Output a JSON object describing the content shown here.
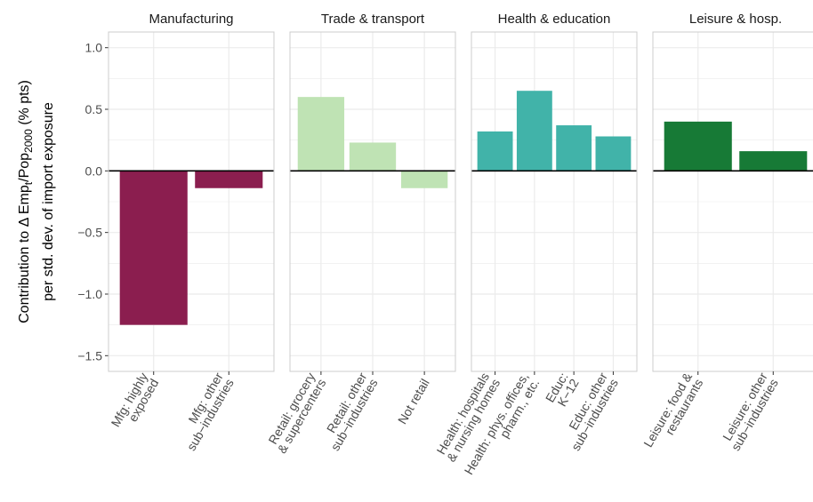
{
  "chart_data": {
    "type": "bar",
    "ylabel": {
      "line1_pre": "Contribution to Δ Emp",
      "line1_sub1": "t",
      "line1_mid": "/Pop",
      "line1_sub2": "2000",
      "line1_post": " (% pts)",
      "line2": "per std. dev. of import exposure"
    },
    "ylim": [
      -1.5,
      1.0
    ],
    "yticks": [
      -1.5,
      -1.0,
      -0.5,
      0.0,
      0.5,
      1.0
    ],
    "ytick_labels": [
      "−1.5",
      "−1.0",
      "−0.5",
      "0.0",
      "0.5",
      "1.0"
    ],
    "grid": true,
    "zero_line": true,
    "panels": [
      {
        "title": "Manufacturing",
        "color": "#8B1E4F",
        "bars": [
          {
            "label": [
              "Mfg: highly",
              "exposed"
            ],
            "value": -1.25
          },
          {
            "label": [
              "Mfg: other",
              "sub−industries"
            ],
            "value": -0.14
          }
        ]
      },
      {
        "title": "Trade & transport",
        "color": "#BFE3B4",
        "bars": [
          {
            "label": [
              "Retail: grocery",
              "& supercenters"
            ],
            "value": 0.6
          },
          {
            "label": [
              "Retail: other",
              "sub−industries"
            ],
            "value": 0.23
          },
          {
            "label": [
              "Not retail"
            ],
            "value": -0.14
          }
        ]
      },
      {
        "title": "Health & education",
        "color": "#41B3A9",
        "bars": [
          {
            "label": [
              "Health: hospitals",
              "& nursing homes"
            ],
            "value": 0.32
          },
          {
            "label": [
              "Health: phys. offices,",
              "pharm., etc."
            ],
            "value": 0.65
          },
          {
            "label": [
              "Educ:",
              "K−12"
            ],
            "value": 0.37
          },
          {
            "label": [
              "Educ: other",
              "sub−industries"
            ],
            "value": 0.28
          }
        ]
      },
      {
        "title": "Leisure & hosp.",
        "color": "#177A36",
        "bars": [
          {
            "label": [
              "Leisure: food &",
              "restaurants"
            ],
            "value": 0.4
          },
          {
            "label": [
              "Leisure: other",
              "sub−industries"
            ],
            "value": 0.16
          }
        ]
      }
    ]
  }
}
